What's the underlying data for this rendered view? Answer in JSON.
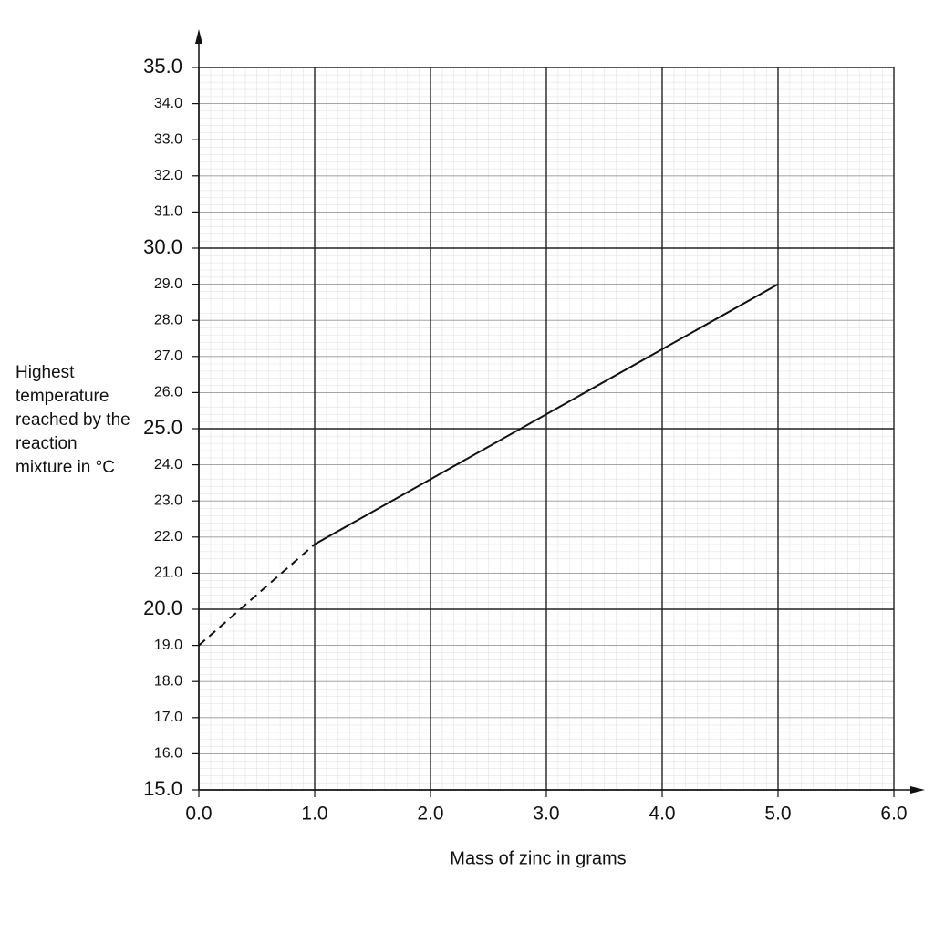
{
  "chart_data": {
    "type": "line",
    "xlabel": "Mass of zinc in grams",
    "ylabel": "Highest temperature reached by the reaction mixture in °C",
    "xlim": [
      0,
      6
    ],
    "ylim": [
      15,
      35
    ],
    "xticks": [
      {
        "value": 0,
        "label": "0.0"
      },
      {
        "value": 1,
        "label": "1.0"
      },
      {
        "value": 2,
        "label": "2.0"
      },
      {
        "value": 3,
        "label": "3.0"
      },
      {
        "value": 4,
        "label": "4.0"
      },
      {
        "value": 5,
        "label": "5.0"
      },
      {
        "value": 6,
        "label": "6.0"
      }
    ],
    "yticks": [
      {
        "value": 15,
        "label": "15.0"
      },
      {
        "value": 16,
        "label": "16.0"
      },
      {
        "value": 17,
        "label": "17.0"
      },
      {
        "value": 18,
        "label": "18.0"
      },
      {
        "value": 19,
        "label": "19.0"
      },
      {
        "value": 20,
        "label": "20.0"
      },
      {
        "value": 21,
        "label": "21.0"
      },
      {
        "value": 22,
        "label": "22.0"
      },
      {
        "value": 23,
        "label": "23.0"
      },
      {
        "value": 24,
        "label": "24.0"
      },
      {
        "value": 25,
        "label": "25.0"
      },
      {
        "value": 26,
        "label": "26.0"
      },
      {
        "value": 27,
        "label": "27.0"
      },
      {
        "value": 28,
        "label": "28.0"
      },
      {
        "value": 29,
        "label": "29.0"
      },
      {
        "value": 30,
        "label": "30.0"
      },
      {
        "value": 31,
        "label": "31.0"
      },
      {
        "value": 32,
        "label": "32.0"
      },
      {
        "value": 33,
        "label": "33.0"
      },
      {
        "value": 34,
        "label": "34.0"
      },
      {
        "value": 35,
        "label": "35.0"
      }
    ],
    "grid": true,
    "series": [
      {
        "x": [
          0,
          1
        ],
        "values": [
          19.0,
          21.8
        ],
        "color": "#111111",
        "dashed": true
      },
      {
        "x": [
          1,
          5
        ],
        "values": [
          21.8,
          29.0
        ],
        "color": "#111111",
        "dashed": false
      }
    ]
  }
}
